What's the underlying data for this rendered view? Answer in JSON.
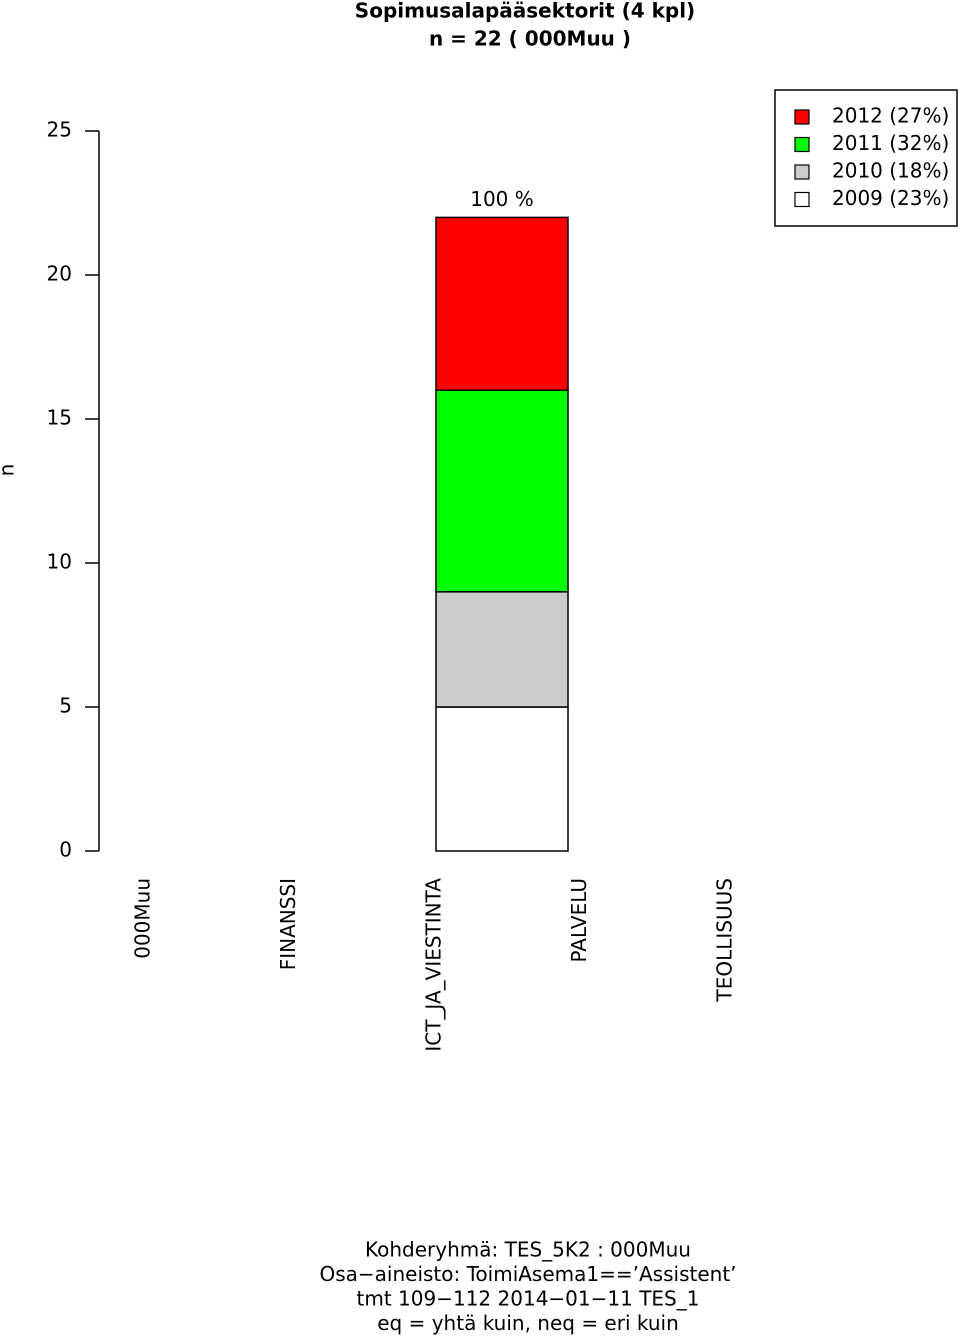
{
  "chart_data": {
    "type": "stacked_bar",
    "title": "Sopimusalapääsektorit (4 kpl)",
    "subtitle": "n = 22 ( 000Muu )",
    "y_label": "n",
    "annotation": "100 %",
    "categories": [
      "000Muu",
      "FINANSSI",
      "ICT_JA_VIESTINTA",
      "PALVELU",
      "TEOLLISUUS"
    ],
    "series": [
      {
        "name": "2009 (23%)",
        "color": "#ffffff",
        "values": [
          0,
          0,
          5,
          0,
          0
        ]
      },
      {
        "name": "2010 (18%)",
        "color": "#cccccc",
        "values": [
          0,
          0,
          4,
          0,
          0
        ]
      },
      {
        "name": "2011 (32%)",
        "color": "#00ff00",
        "values": [
          0,
          0,
          7,
          0,
          0
        ]
      },
      {
        "name": "2012 (27%)",
        "color": "#ff0000",
        "values": [
          0,
          0,
          6,
          0,
          0
        ]
      }
    ],
    "ylim": [
      0,
      25
    ],
    "yticks": [
      0,
      5,
      10,
      15,
      20,
      25
    ],
    "legend": "top-right",
    "footer": [
      "Kohderyhmä:  TES_5K2 : 000Muu",
      "Osa−aineisto:  ToimiAsema1==’Assistent’",
      "tmt 109−112 2014−01−11 TES_1",
      "eq = yhtä kuin, neq = eri kuin"
    ]
  }
}
